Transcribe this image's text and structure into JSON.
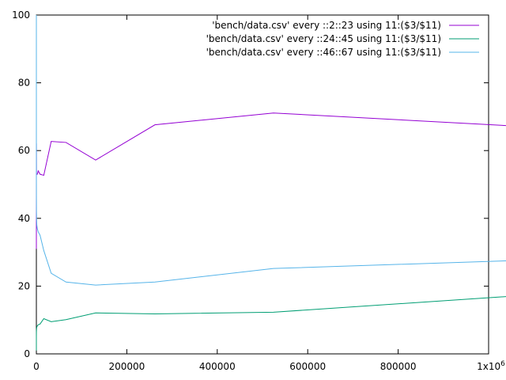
{
  "chart_data": {
    "type": "line",
    "title": "",
    "xlabel": "",
    "ylabel": "",
    "xlim": [
      0,
      1000000
    ],
    "ylim": [
      0,
      100
    ],
    "x_ticks": [
      {
        "value": 0,
        "label": "0"
      },
      {
        "value": 200000,
        "label": "200000"
      },
      {
        "value": 400000,
        "label": "400000"
      },
      {
        "value": 600000,
        "label": "600000"
      },
      {
        "value": 800000,
        "label": "800000"
      },
      {
        "value": 1000000,
        "label": "1x10",
        "sup": "6"
      }
    ],
    "y_ticks": [
      {
        "value": 0,
        "label": "0"
      },
      {
        "value": 20,
        "label": "20"
      },
      {
        "value": 40,
        "label": "40"
      },
      {
        "value": 60,
        "label": "60"
      },
      {
        "value": 80,
        "label": "80"
      },
      {
        "value": 100,
        "label": "100"
      }
    ],
    "grid": false,
    "legend_position": "top-right",
    "series": [
      {
        "name": "'bench/data.csv' every ::2::23 using 11:($3/$11)",
        "color": "#9400d3",
        "x": [
          1,
          2,
          4,
          8,
          16,
          32,
          64,
          128,
          256,
          512,
          1024,
          2048,
          4096,
          8192,
          16384,
          32768,
          65536,
          131072,
          262144,
          524288,
          1048576
        ],
        "y": [
          100,
          31,
          90,
          52,
          52,
          60,
          62,
          62,
          53,
          53,
          53,
          53,
          54,
          53,
          52.7,
          62.7,
          62.4,
          57.2,
          67.6,
          71.1,
          67.3
        ]
      },
      {
        "name": "'bench/data.csv' every ::24::45 using 11:($3/$11)",
        "color": "#009e73",
        "x": [
          1,
          2,
          4,
          8,
          16,
          32,
          64,
          128,
          256,
          512,
          1024,
          2048,
          4096,
          8192,
          16384,
          32768,
          65536,
          131072,
          262144,
          524288,
          1048576
        ],
        "y": [
          1,
          2,
          3,
          4,
          5,
          5.5,
          6,
          6.5,
          7,
          7.5,
          8,
          8.2,
          8.6,
          8.8,
          10.4,
          9.5,
          10.1,
          12.1,
          11.8,
          12.3,
          17
        ]
      },
      {
        "name": "'bench/data.csv' every ::46::67 using 11:($3/$11)",
        "color": "#56b4e9",
        "x": [
          1,
          2,
          4,
          8,
          16,
          32,
          64,
          128,
          256,
          512,
          1024,
          2048,
          4096,
          8192,
          16384,
          32768,
          65536,
          131072,
          262144,
          524288,
          1048576
        ],
        "y": [
          100,
          90,
          80,
          70,
          62,
          56,
          50,
          46,
          42,
          40,
          38,
          37,
          36,
          35,
          30.5,
          23.8,
          21.2,
          20.3,
          21.2,
          25.2,
          27.5
        ]
      }
    ]
  }
}
